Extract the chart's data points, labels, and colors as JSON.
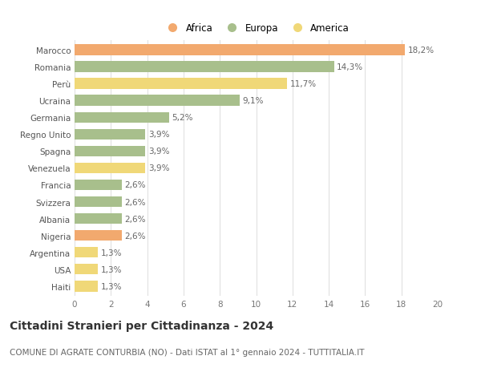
{
  "categories": [
    "Marocco",
    "Romania",
    "Perù",
    "Ucraina",
    "Germania",
    "Regno Unito",
    "Spagna",
    "Venezuela",
    "Francia",
    "Svizzera",
    "Albania",
    "Nigeria",
    "Argentina",
    "USA",
    "Haiti"
  ],
  "values": [
    18.2,
    14.3,
    11.7,
    9.1,
    5.2,
    3.9,
    3.9,
    3.9,
    2.6,
    2.6,
    2.6,
    2.6,
    1.3,
    1.3,
    1.3
  ],
  "labels": [
    "18,2%",
    "14,3%",
    "11,7%",
    "9,1%",
    "5,2%",
    "3,9%",
    "3,9%",
    "3,9%",
    "2,6%",
    "2,6%",
    "2,6%",
    "2,6%",
    "1,3%",
    "1,3%",
    "1,3%"
  ],
  "continents": [
    "Africa",
    "Europa",
    "America",
    "Europa",
    "Europa",
    "Europa",
    "Europa",
    "America",
    "Europa",
    "Europa",
    "Europa",
    "Africa",
    "America",
    "America",
    "America"
  ],
  "colors": {
    "Africa": "#F2A96E",
    "Europa": "#A8BF8C",
    "America": "#F0D878"
  },
  "title": "Cittadini Stranieri per Cittadinanza - 2024",
  "subtitle": "COMUNE DI AGRATE CONTURBIA (NO) - Dati ISTAT al 1° gennaio 2024 - TUTTITALIA.IT",
  "xlim": [
    0,
    20
  ],
  "xticks": [
    0,
    2,
    4,
    6,
    8,
    10,
    12,
    14,
    16,
    18,
    20
  ],
  "background_color": "#FFFFFF",
  "grid_color": "#DDDDDD",
  "bar_height": 0.65,
  "label_fontsize": 7.5,
  "tick_fontsize": 7.5,
  "title_fontsize": 10,
  "subtitle_fontsize": 7.5,
  "legend_fontsize": 8.5
}
